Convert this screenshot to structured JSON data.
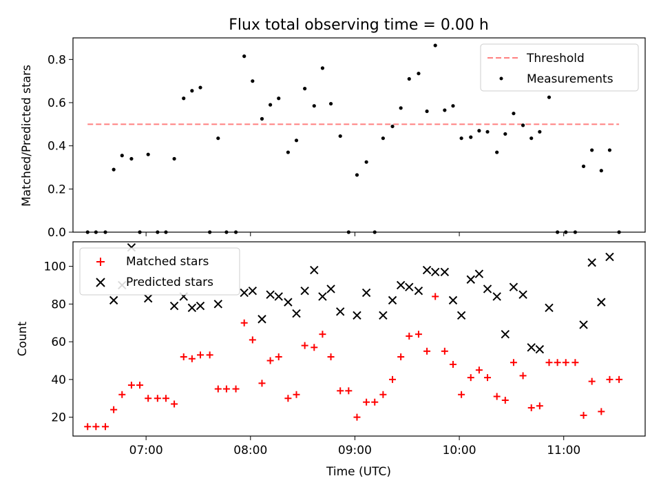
{
  "title": "Flux total observing time = 0.00 h",
  "chart_data": [
    {
      "type": "scatter",
      "ylabel": "Matched/Predicted stars",
      "xlim": [
        6.3,
        11.78
      ],
      "ylim": [
        0,
        0.9
      ],
      "yticks": [
        "0.0",
        "0.2",
        "0.4",
        "0.6",
        "0.8"
      ],
      "ytick_values": [
        0,
        0.2,
        0.4,
        0.6,
        0.8
      ],
      "legend_position": "top-right",
      "threshold": {
        "name": "Threshold",
        "y": 0.5,
        "x": [
          6.44,
          11.53
        ],
        "color": "#ff7f7f",
        "style": "dashed"
      },
      "series": [
        {
          "name": "Measurements",
          "marker": "dot",
          "color": "#000000",
          "x": [
            6.44,
            6.52,
            6.61,
            6.69,
            6.77,
            6.86,
            6.94,
            7.02,
            7.11,
            7.19,
            7.27,
            7.36,
            7.44,
            7.52,
            7.61,
            7.69,
            7.77,
            7.86,
            7.94,
            8.02,
            8.11,
            8.19,
            8.27,
            8.36,
            8.44,
            8.52,
            8.61,
            8.69,
            8.77,
            8.86,
            8.94,
            9.02,
            9.11,
            9.19,
            9.27,
            9.36,
            9.44,
            9.52,
            9.61,
            9.69,
            9.77,
            9.86,
            9.94,
            10.02,
            10.11,
            10.19,
            10.27,
            10.36,
            10.44,
            10.52,
            10.61,
            10.69,
            10.77,
            10.86,
            10.94,
            11.02,
            11.11,
            11.19,
            11.27,
            11.36,
            11.44,
            11.53
          ],
          "y": [
            0,
            0,
            0,
            0.29,
            0.355,
            0.34,
            0,
            0.36,
            0,
            0,
            0.34,
            0.62,
            0.655,
            0.67,
            0,
            0.435,
            0,
            0,
            0.815,
            0.7,
            0.525,
            0.59,
            0.62,
            0.37,
            0.425,
            0.665,
            0.585,
            0.76,
            0.595,
            0.445,
            0,
            0.265,
            0.325,
            0,
            0.435,
            0.49,
            0.575,
            0.71,
            0.735,
            0.56,
            0.865,
            0.565,
            0.585,
            0.435,
            0.44,
            0.47,
            0.465,
            0.37,
            0.455,
            0.55,
            0.495,
            0.435,
            0.465,
            0.625,
            0,
            0,
            0,
            0.305,
            0.38,
            0.285,
            0.38,
            0
          ]
        }
      ]
    },
    {
      "type": "scatter",
      "xlabel": "Time (UTC)",
      "ylabel": "Count",
      "xlim": [
        6.3,
        11.78
      ],
      "ylim": [
        10,
        113
      ],
      "xticks": [
        "07:00",
        "08:00",
        "09:00",
        "10:00",
        "11:00"
      ],
      "xtick_values": [
        7,
        8,
        9,
        10,
        11
      ],
      "yticks": [
        "20",
        "40",
        "60",
        "80",
        "100"
      ],
      "ytick_values": [
        20,
        40,
        60,
        80,
        100
      ],
      "legend_position": "top-left",
      "series": [
        {
          "name": "Matched stars",
          "marker": "plus",
          "color": "#ff0000",
          "x": [
            6.44,
            6.52,
            6.61,
            6.69,
            6.77,
            6.86,
            6.94,
            7.02,
            7.11,
            7.19,
            7.27,
            7.36,
            7.44,
            7.52,
            7.61,
            7.69,
            7.77,
            7.86,
            7.94,
            8.02,
            8.11,
            8.19,
            8.27,
            8.36,
            8.44,
            8.52,
            8.61,
            8.69,
            8.77,
            8.86,
            8.94,
            9.02,
            9.11,
            9.19,
            9.27,
            9.36,
            9.44,
            9.52,
            9.61,
            9.69,
            9.77,
            9.86,
            9.94,
            10.02,
            10.11,
            10.19,
            10.27,
            10.36,
            10.44,
            10.52,
            10.61,
            10.69,
            10.77,
            10.86,
            10.94,
            11.02,
            11.11,
            11.19,
            11.27,
            11.36,
            11.44,
            11.53
          ],
          "y": [
            15,
            15,
            15,
            24,
            32,
            37,
            37,
            30,
            30,
            30,
            27,
            52,
            51,
            53,
            53,
            35,
            35,
            35,
            70,
            61,
            38,
            50,
            52,
            30,
            32,
            58,
            57,
            64,
            52,
            34,
            34,
            20,
            28,
            28,
            32,
            40,
            52,
            63,
            64,
            55,
            84,
            55,
            48,
            32,
            41,
            45,
            41,
            31,
            29,
            49,
            42,
            25,
            26,
            49,
            49,
            49,
            49,
            21,
            39,
            23,
            40,
            40
          ]
        },
        {
          "name": "Predicted stars",
          "marker": "x",
          "color": "#000000",
          "x": [
            6.69,
            6.77,
            6.86,
            7.02,
            7.27,
            7.36,
            7.44,
            7.52,
            7.69,
            7.94,
            8.02,
            8.11,
            8.19,
            8.27,
            8.36,
            8.44,
            8.52,
            8.61,
            8.69,
            8.77,
            8.86,
            9.02,
            9.11,
            9.27,
            9.36,
            9.44,
            9.52,
            9.61,
            9.69,
            9.77,
            9.86,
            9.94,
            10.02,
            10.11,
            10.19,
            10.27,
            10.36,
            10.44,
            10.52,
            10.61,
            10.69,
            10.77,
            10.86,
            11.19,
            11.27,
            11.36,
            11.44
          ],
          "y": [
            82,
            90,
            110,
            83,
            79,
            84,
            78,
            79,
            80,
            86,
            87,
            72,
            85,
            84,
            81,
            75,
            87,
            98,
            84,
            88,
            76,
            74,
            86,
            74,
            82,
            90,
            89,
            87,
            98,
            97,
            97,
            82,
            74,
            93,
            96,
            88,
            84,
            64,
            89,
            85,
            57,
            56,
            78,
            69,
            102,
            81,
            105
          ]
        }
      ]
    }
  ]
}
